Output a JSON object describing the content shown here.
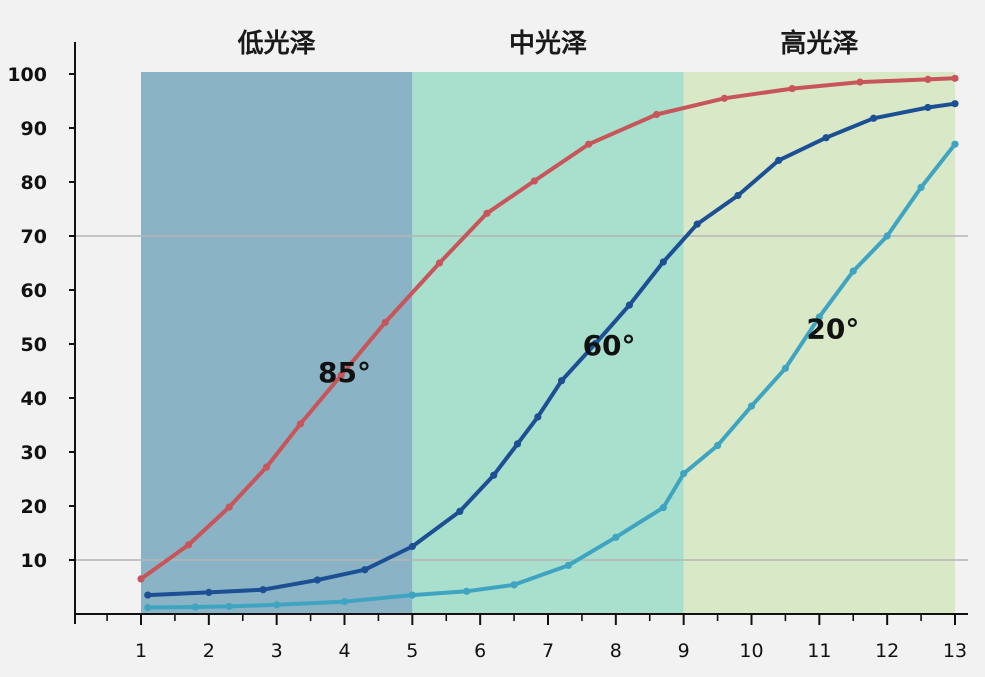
{
  "chart_data": {
    "type": "line",
    "title": "",
    "xlabel": "",
    "ylabel": "",
    "xlim": [
      1,
      13
    ],
    "ylim": [
      0,
      100
    ],
    "x_ticks": [
      1,
      2,
      3,
      4,
      5,
      6,
      7,
      8,
      9,
      10,
      11,
      12,
      13
    ],
    "y_ticks": [
      10,
      20,
      30,
      40,
      50,
      60,
      70,
      80,
      90,
      100
    ],
    "reference_lines_y": [
      10,
      70
    ],
    "zones": [
      {
        "label": "低光泽",
        "x_start": 1,
        "x_end": 5,
        "color": "#8ab3c5"
      },
      {
        "label": "中光泽",
        "x_start": 5,
        "x_end": 9,
        "color": "#a8dfcd"
      },
      {
        "label": "高光泽",
        "x_start": 9,
        "x_end": 13,
        "color": "#d9e9c7"
      }
    ],
    "series": [
      {
        "name": "85°",
        "color": "#c8555a",
        "label_at": [
          4,
          43
        ],
        "points": [
          [
            1.0,
            6.5
          ],
          [
            1.7,
            12.8
          ],
          [
            2.3,
            19.8
          ],
          [
            2.85,
            27.2
          ],
          [
            3.35,
            35.2
          ],
          [
            3.95,
            44.2
          ],
          [
            4.6,
            54.0
          ],
          [
            5.4,
            65.0
          ],
          [
            6.1,
            74.2
          ],
          [
            6.8,
            80.2
          ],
          [
            7.6,
            87.0
          ],
          [
            8.6,
            92.5
          ],
          [
            9.6,
            95.5
          ],
          [
            10.6,
            97.3
          ],
          [
            11.6,
            98.5
          ],
          [
            12.6,
            99.0
          ],
          [
            13.0,
            99.2
          ]
        ]
      },
      {
        "name": "60°",
        "color": "#1d4f94",
        "label_at": [
          7.9,
          48
        ],
        "points": [
          [
            1.1,
            3.5
          ],
          [
            2.0,
            4.0
          ],
          [
            2.8,
            4.5
          ],
          [
            3.6,
            6.3
          ],
          [
            4.3,
            8.2
          ],
          [
            5.0,
            12.5
          ],
          [
            5.7,
            19.0
          ],
          [
            6.2,
            25.7
          ],
          [
            6.55,
            31.5
          ],
          [
            6.85,
            36.5
          ],
          [
            7.2,
            43.2
          ],
          [
            7.7,
            50.1
          ],
          [
            8.2,
            57.2
          ],
          [
            8.7,
            65.2
          ],
          [
            9.2,
            72.2
          ],
          [
            9.8,
            77.5
          ],
          [
            10.4,
            84.0
          ],
          [
            11.1,
            88.2
          ],
          [
            11.8,
            91.8
          ],
          [
            12.6,
            93.8
          ],
          [
            13.0,
            94.5
          ]
        ]
      },
      {
        "name": "20°",
        "color": "#3fa4c2",
        "label_at": [
          11.2,
          51
        ],
        "points": [
          [
            1.1,
            1.2
          ],
          [
            1.8,
            1.3
          ],
          [
            2.3,
            1.4
          ],
          [
            3.0,
            1.7
          ],
          [
            4.0,
            2.3
          ],
          [
            5.0,
            3.5
          ],
          [
            5.8,
            4.2
          ],
          [
            6.5,
            5.4
          ],
          [
            7.3,
            9.0
          ],
          [
            8.0,
            14.2
          ],
          [
            8.7,
            19.7
          ],
          [
            9.0,
            26.0
          ],
          [
            9.5,
            31.2
          ],
          [
            10.0,
            38.5
          ],
          [
            10.5,
            45.5
          ],
          [
            11.0,
            55.0
          ],
          [
            11.5,
            63.5
          ],
          [
            12.0,
            70.0
          ],
          [
            12.5,
            79.0
          ],
          [
            13.0,
            87.0
          ]
        ]
      }
    ]
  }
}
